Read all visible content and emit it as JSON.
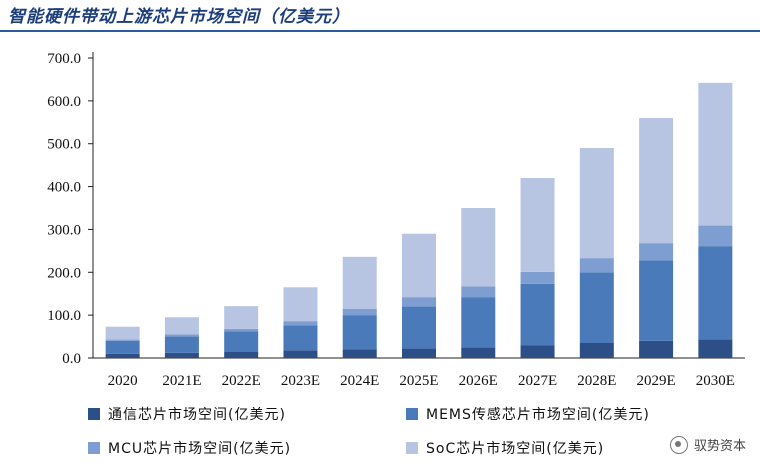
{
  "chart_data": {
    "type": "bar",
    "stacked": true,
    "title": "智能硬件带动上游芯片市场空间（亿美元）",
    "xlabel": "",
    "ylabel": "",
    "ylim": [
      0,
      700
    ],
    "yticks": [
      "0.0",
      "100.0",
      "200.0",
      "300.0",
      "400.0",
      "500.0",
      "600.0",
      "700.0"
    ],
    "ytick_values": [
      0,
      100,
      200,
      300,
      400,
      500,
      600,
      700
    ],
    "grid": false,
    "legend_position": "bottom",
    "categories": [
      "2020",
      "2021E",
      "2022E",
      "2023E",
      "2024E",
      "2025E",
      "2026E",
      "2027E",
      "2028E",
      "2029E",
      "2030E"
    ],
    "series": [
      {
        "name": "通信芯片市场空间(亿美元)",
        "color": "#2d4f88",
        "values": [
          10,
          12,
          14,
          18,
          20,
          22,
          25,
          30,
          35,
          40,
          43
        ]
      },
      {
        "name": "MEMS传感芯片市场空间(亿美元)",
        "color": "#4a7ab9",
        "values": [
          30,
          38,
          48,
          58,
          80,
          98,
          117,
          143,
          165,
          188,
          218
        ]
      },
      {
        "name": "MCU芯片市场空间(亿美元)",
        "color": "#7e9ed1",
        "values": [
          3,
          5,
          6,
          10,
          15,
          22,
          25,
          28,
          33,
          40,
          48
        ]
      },
      {
        "name": "SoC芯片市场空间(亿美元)",
        "color": "#b7c5e2",
        "values": [
          30,
          40,
          53,
          79,
          121,
          148,
          183,
          219,
          257,
          292,
          333
        ]
      }
    ]
  },
  "watermark": {
    "text": "驭势资本"
  }
}
